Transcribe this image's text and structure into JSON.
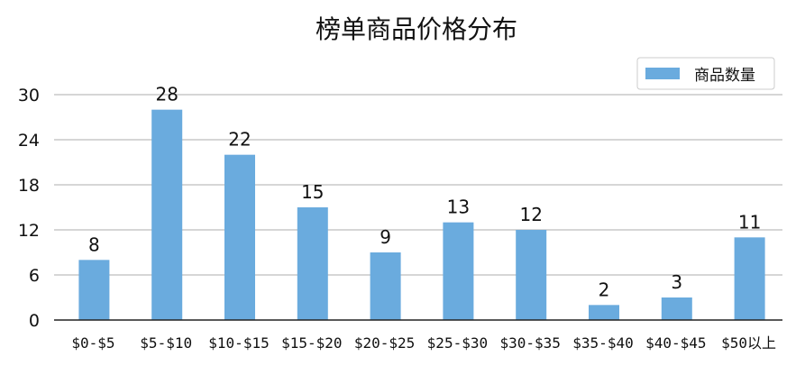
{
  "chart_data": {
    "type": "bar",
    "title": "榜单商品价格分布",
    "xlabel": "",
    "ylabel": "",
    "categories": [
      "$0-$5",
      "$5-$10",
      "$10-$15",
      "$15-$20",
      "$20-$25",
      "$25-$30",
      "$30-$35",
      "$35-$40",
      "$40-$45",
      "$50以上"
    ],
    "series": [
      {
        "name": "商品数量",
        "values": [
          8,
          28,
          22,
          15,
          9,
          13,
          12,
          2,
          3,
          11
        ]
      }
    ],
    "ylim": [
      0,
      30
    ],
    "yticks": [
      0,
      6,
      12,
      18,
      24,
      30
    ],
    "grid": true,
    "legend": "top-right",
    "colors": {
      "bar": "#6aabde",
      "grid": "#bdbdbd",
      "axis": "#222222"
    }
  }
}
